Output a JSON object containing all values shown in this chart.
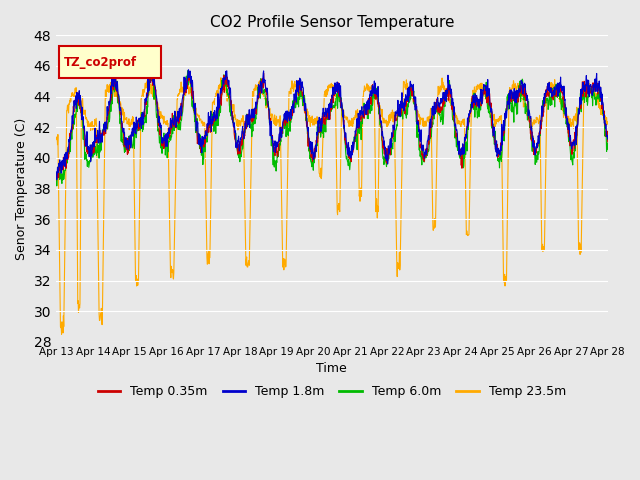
{
  "title": "CO2 Profile Sensor Temperature",
  "xlabel": "Time",
  "ylabel": "Senor Temperature (C)",
  "ylim": [
    28,
    48
  ],
  "yticks": [
    28,
    30,
    32,
    34,
    36,
    38,
    40,
    42,
    44,
    46,
    48
  ],
  "legend_label": "TZ_co2prof",
  "series_labels": [
    "Temp 0.35m",
    "Temp 1.8m",
    "Temp 6.0m",
    "Temp 23.5m"
  ],
  "series_colors": [
    "#cc0000",
    "#0000cc",
    "#00bb00",
    "#ffaa00"
  ],
  "bg_color": "#e8e8e8",
  "grid_color": "#ffffff",
  "xtick_labels": [
    "Apr 13",
    "Apr 14",
    "Apr 15",
    "Apr 16",
    "Apr 17",
    "Apr 18",
    "Apr 19",
    "Apr 20",
    "Apr 21",
    "Apr 22",
    "Apr 23",
    "Apr 24",
    "Apr 25",
    "Apr 26",
    "Apr 27",
    "Apr 28"
  ],
  "n_pts": 1500,
  "n_days": 15
}
